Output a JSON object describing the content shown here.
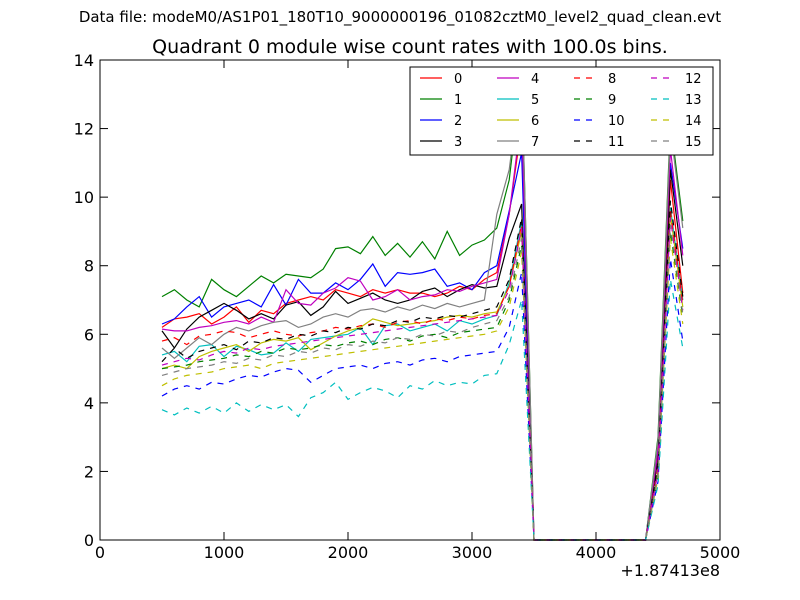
{
  "suptitle": "Data file: modeM0/AS1P01_180T10_9000000196_01082cztM0_level2_quad_clean.evt",
  "chart_data": {
    "type": "line",
    "title": "Quadrant 0 module wise count rates with 100.0s bins.",
    "xlabel": "",
    "ylabel": "",
    "x_offset_label": "+1.87413e8",
    "xlim": [
      0,
      5000
    ],
    "ylim": [
      0,
      14
    ],
    "xticks": [
      0,
      1000,
      2000,
      3000,
      4000,
      5000
    ],
    "yticks": [
      0,
      2,
      4,
      6,
      8,
      10,
      12,
      14
    ],
    "grid": false,
    "legend_position": "top-right",
    "legend_columns": 4,
    "x": [
      500,
      600,
      700,
      800,
      900,
      1000,
      1100,
      1200,
      1300,
      1400,
      1500,
      1600,
      1700,
      1800,
      1900,
      2000,
      2100,
      2200,
      2300,
      2400,
      2500,
      2600,
      2700,
      2800,
      2900,
      3000,
      3100,
      3200,
      3300,
      3400,
      3500,
      3600,
      3700,
      3800,
      3900,
      4000,
      4100,
      4200,
      4300,
      4400,
      4500,
      4600,
      4700
    ],
    "series": [
      {
        "name": "0",
        "color": "#ff0000",
        "dash": "solid",
        "values": [
          6.2,
          6.45,
          6.5,
          6.6,
          6.3,
          6.5,
          6.8,
          6.35,
          6.7,
          6.6,
          6.9,
          7.0,
          7.1,
          7.0,
          7.3,
          7.2,
          7.1,
          7.3,
          7.2,
          7.3,
          7.2,
          7.2,
          7.1,
          7.2,
          7.4,
          7.3,
          7.6,
          7.8,
          9.5,
          12.1,
          0,
          0,
          0,
          0,
          0,
          0,
          0,
          0,
          0,
          0,
          2.5,
          10.5,
          7.2
        ]
      },
      {
        "name": "1",
        "color": "#008000",
        "dash": "solid",
        "values": [
          7.1,
          7.3,
          7.0,
          6.8,
          7.6,
          7.3,
          7.1,
          7.4,
          7.7,
          7.5,
          7.75,
          7.7,
          7.65,
          7.9,
          8.5,
          8.55,
          8.35,
          8.85,
          8.3,
          8.65,
          8.25,
          8.7,
          8.2,
          9.0,
          8.3,
          8.6,
          8.75,
          9.1,
          10.5,
          13.6,
          0,
          0,
          0,
          0,
          0,
          0,
          0,
          0,
          0,
          0,
          3.0,
          12.2,
          9.3
        ]
      },
      {
        "name": "2",
        "color": "#0000ff",
        "dash": "solid",
        "values": [
          6.3,
          6.45,
          6.8,
          7.1,
          6.5,
          6.8,
          6.9,
          7.0,
          6.8,
          7.45,
          6.85,
          7.6,
          7.2,
          7.2,
          7.5,
          7.3,
          7.6,
          8.05,
          7.4,
          7.8,
          7.75,
          7.8,
          7.9,
          7.4,
          7.5,
          7.3,
          7.8,
          8.0,
          9.6,
          11.3,
          0,
          0,
          0,
          0,
          0,
          0,
          0,
          0,
          0,
          0,
          2.8,
          11.0,
          8.5
        ]
      },
      {
        "name": "3",
        "color": "#000000",
        "dash": "solid",
        "values": [
          6.1,
          5.6,
          6.15,
          6.5,
          6.7,
          6.9,
          6.7,
          6.45,
          6.6,
          6.45,
          6.85,
          6.95,
          6.55,
          6.8,
          7.25,
          6.9,
          7.05,
          7.2,
          7.0,
          6.9,
          7.0,
          7.25,
          7.35,
          7.1,
          7.3,
          7.45,
          7.35,
          7.4,
          8.8,
          9.8,
          0,
          0,
          0,
          0,
          0,
          0,
          0,
          0,
          0,
          0,
          2.4,
          10.8,
          8.0
        ]
      },
      {
        "name": "4",
        "color": "#bf00bf",
        "dash": "solid",
        "values": [
          6.15,
          6.1,
          6.1,
          6.2,
          6.25,
          6.35,
          6.4,
          6.3,
          6.5,
          6.35,
          7.3,
          6.9,
          6.85,
          7.2,
          7.35,
          7.65,
          7.55,
          7.0,
          7.1,
          7.3,
          7.0,
          7.1,
          7.15,
          7.3,
          7.25,
          7.4,
          7.5,
          7.6,
          9.5,
          12.4,
          0,
          0,
          0,
          0,
          0,
          0,
          0,
          0,
          0,
          0,
          2.6,
          11.4,
          8.3
        ]
      },
      {
        "name": "5",
        "color": "#00bfbf",
        "dash": "solid",
        "values": [
          5.4,
          5.5,
          5.2,
          5.65,
          5.7,
          5.35,
          5.65,
          5.55,
          5.4,
          5.45,
          5.75,
          5.5,
          5.85,
          5.9,
          5.95,
          6.0,
          6.2,
          5.7,
          6.25,
          6.3,
          6.1,
          6.2,
          6.3,
          6.1,
          6.4,
          6.3,
          6.45,
          6.55,
          7.5,
          9.3,
          0,
          0,
          0,
          0,
          0,
          0,
          0,
          0,
          0,
          0,
          2.0,
          9.7,
          7.0
        ]
      },
      {
        "name": "6",
        "color": "#bfbf00",
        "dash": "solid",
        "values": [
          5.0,
          5.1,
          5.0,
          5.35,
          5.5,
          5.6,
          5.7,
          5.5,
          5.75,
          5.85,
          5.8,
          5.9,
          5.55,
          5.75,
          5.95,
          6.1,
          6.2,
          6.45,
          6.35,
          6.25,
          6.3,
          6.35,
          6.4,
          6.5,
          6.55,
          6.5,
          6.6,
          6.65,
          7.4,
          9.0,
          0,
          0,
          0,
          0,
          0,
          0,
          0,
          0,
          0,
          0,
          2.0,
          9.5,
          6.8
        ]
      },
      {
        "name": "7",
        "color": "#808080",
        "dash": "solid",
        "values": [
          5.6,
          5.3,
          5.6,
          5.9,
          5.7,
          6.0,
          6.2,
          6.1,
          6.25,
          6.35,
          6.4,
          6.2,
          6.3,
          6.5,
          6.6,
          6.5,
          6.7,
          6.75,
          6.65,
          6.8,
          6.7,
          6.85,
          6.75,
          6.9,
          6.8,
          6.9,
          7.0,
          9.5,
          10.8,
          13.6,
          0,
          0,
          0,
          0,
          0,
          0,
          0,
          0,
          0,
          0,
          2.9,
          12.0,
          9.1
        ]
      },
      {
        "name": "8",
        "color": "#ff0000",
        "dash": "dashed",
        "values": [
          5.8,
          5.9,
          5.7,
          5.95,
          6.0,
          6.1,
          6.05,
          5.9,
          6.0,
          6.1,
          6.0,
          5.95,
          6.05,
          6.1,
          6.2,
          6.15,
          6.25,
          6.3,
          6.2,
          6.35,
          6.4,
          6.3,
          6.45,
          6.4,
          6.5,
          6.45,
          6.55,
          6.6,
          7.4,
          9.2,
          0,
          0,
          0,
          0,
          0,
          0,
          0,
          0,
          0,
          0,
          2.1,
          9.6,
          6.9
        ]
      },
      {
        "name": "9",
        "color": "#008000",
        "dash": "dashed",
        "values": [
          5.0,
          5.05,
          5.1,
          5.2,
          5.25,
          5.3,
          5.4,
          5.35,
          5.5,
          5.45,
          5.6,
          5.55,
          5.6,
          5.7,
          5.65,
          5.75,
          5.8,
          5.7,
          5.85,
          5.9,
          5.8,
          5.95,
          6.0,
          5.9,
          6.05,
          6.1,
          6.15,
          6.2,
          7.0,
          8.6,
          0,
          0,
          0,
          0,
          0,
          0,
          0,
          0,
          0,
          0,
          1.9,
          9.0,
          6.5
        ]
      },
      {
        "name": "10",
        "color": "#0000ff",
        "dash": "dashed",
        "values": [
          4.2,
          4.4,
          4.5,
          4.4,
          4.6,
          4.55,
          4.7,
          4.8,
          4.75,
          4.9,
          5.0,
          4.95,
          4.6,
          4.8,
          5.0,
          5.05,
          5.1,
          5.0,
          5.15,
          5.2,
          5.1,
          5.25,
          5.3,
          5.2,
          5.35,
          5.4,
          5.45,
          5.5,
          6.2,
          7.8,
          0,
          0,
          0,
          0,
          0,
          0,
          0,
          0,
          0,
          0,
          1.7,
          8.2,
          5.8
        ]
      },
      {
        "name": "11",
        "color": "#000000",
        "dash": "dashed",
        "values": [
          5.2,
          5.6,
          5.3,
          5.5,
          5.6,
          5.7,
          5.55,
          5.8,
          5.75,
          5.9,
          5.85,
          6.0,
          5.95,
          6.1,
          6.05,
          6.2,
          6.15,
          6.3,
          6.25,
          6.4,
          6.35,
          6.5,
          6.45,
          6.55,
          6.5,
          6.6,
          6.7,
          6.8,
          7.6,
          9.4,
          0,
          0,
          0,
          0,
          0,
          0,
          0,
          0,
          0,
          0,
          2.2,
          9.9,
          7.1
        ]
      },
      {
        "name": "12",
        "color": "#bf00bf",
        "dash": "dashed",
        "values": [
          5.1,
          5.2,
          5.3,
          5.25,
          5.4,
          5.5,
          5.45,
          5.6,
          5.55,
          5.65,
          5.7,
          5.75,
          5.8,
          5.85,
          5.9,
          5.95,
          6.0,
          6.05,
          6.1,
          6.15,
          6.2,
          6.25,
          6.3,
          6.35,
          6.4,
          6.45,
          6.5,
          6.55,
          7.3,
          9.1,
          0,
          0,
          0,
          0,
          0,
          0,
          0,
          0,
          0,
          0,
          2.0,
          9.4,
          6.7
        ]
      },
      {
        "name": "13",
        "color": "#00bfbf",
        "dash": "dashed",
        "values": [
          3.8,
          3.65,
          3.85,
          3.7,
          3.9,
          3.7,
          4.0,
          3.75,
          3.95,
          3.8,
          3.95,
          3.6,
          4.15,
          4.3,
          4.6,
          4.1,
          4.3,
          4.45,
          4.35,
          4.15,
          4.5,
          4.4,
          4.65,
          4.5,
          4.6,
          4.55,
          4.8,
          4.85,
          5.7,
          7.0,
          0,
          0,
          0,
          0,
          0,
          0,
          0,
          0,
          0,
          0,
          1.6,
          7.6,
          5.6
        ]
      },
      {
        "name": "14",
        "color": "#bfbf00",
        "dash": "dashed",
        "values": [
          4.5,
          4.7,
          4.8,
          4.85,
          4.9,
          5.0,
          5.05,
          5.1,
          5.0,
          5.15,
          5.2,
          5.25,
          5.3,
          5.35,
          5.4,
          5.45,
          5.5,
          5.55,
          5.6,
          5.65,
          5.7,
          5.75,
          5.8,
          5.85,
          5.9,
          5.95,
          6.0,
          6.1,
          6.8,
          8.4,
          0,
          0,
          0,
          0,
          0,
          0,
          0,
          0,
          0,
          0,
          1.8,
          8.8,
          6.3
        ]
      },
      {
        "name": "15",
        "color": "#808080",
        "dash": "dashed",
        "values": [
          4.8,
          4.9,
          5.0,
          5.05,
          5.1,
          5.2,
          5.15,
          5.3,
          5.25,
          5.4,
          5.35,
          5.5,
          5.45,
          5.6,
          5.55,
          5.7,
          5.65,
          5.8,
          5.75,
          5.9,
          5.85,
          6.0,
          5.95,
          6.1,
          6.05,
          6.2,
          6.3,
          6.4,
          7.1,
          8.8,
          0,
          0,
          0,
          0,
          0,
          0,
          0,
          0,
          0,
          0,
          1.9,
          9.2,
          6.6
        ]
      }
    ]
  }
}
